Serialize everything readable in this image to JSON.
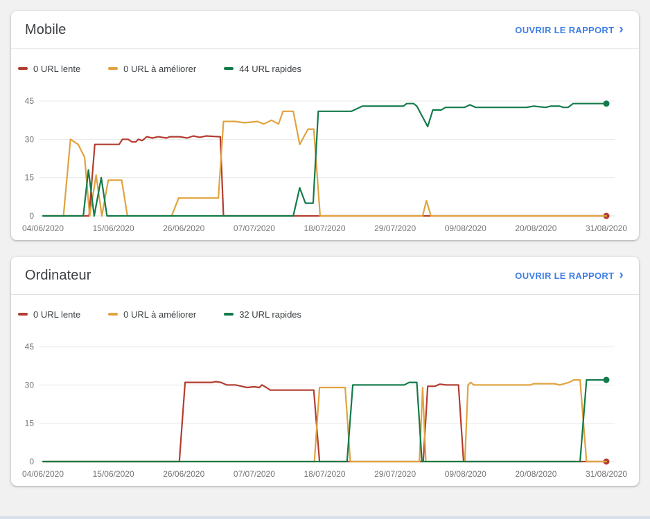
{
  "page": {
    "background": "#f1f1f1"
  },
  "colors": {
    "slow": "#b23d30",
    "improve": "#e0a33e",
    "fast": "#137a4a",
    "link": "#3e7de7",
    "grid": "#e9e9e9",
    "grid_zero": "#dcdcdc",
    "axis_text": "#757575"
  },
  "cards": [
    {
      "title": "Mobile",
      "report_link_label": "OUVRIR LE RAPPORT",
      "chevron": "›",
      "legend": [
        {
          "label": "0 URL lente",
          "color": "#b23d30"
        },
        {
          "label": "0 URL à améliorer",
          "color": "#e0a33e"
        },
        {
          "label": "44 URL rapides",
          "color": "#137a4a"
        }
      ]
    },
    {
      "title": "Ordinateur",
      "report_link_label": "OUVRIR LE RAPPORT",
      "chevron": "›",
      "legend": [
        {
          "label": "0 URL lente",
          "color": "#b23d30"
        },
        {
          "label": "0 URL à améliorer",
          "color": "#e0a33e"
        },
        {
          "label": "32 URL rapides",
          "color": "#137a4a"
        }
      ]
    }
  ],
  "chart_data": [
    {
      "type": "line",
      "title": "Mobile",
      "xlabel": "",
      "ylabel": "",
      "ylim": [
        0,
        45
      ],
      "y_ticks": [
        0,
        15,
        30,
        45
      ],
      "x_range_days": [
        0,
        88
      ],
      "x_tick_days": [
        0,
        11,
        22,
        33,
        44,
        55,
        66,
        77,
        88
      ],
      "x_tick_labels": [
        "04/06/2020",
        "15/06/2020",
        "26/06/2020",
        "07/07/2020",
        "18/07/2020",
        "29/07/2020",
        "09/08/2020",
        "20/08/2020",
        "31/08/2020"
      ],
      "grid": true,
      "legend_position": "top",
      "series": [
        {
          "name": "0 URL lente",
          "color": "#b23d30",
          "end_dot": true,
          "points": [
            [
              0,
              0
            ],
            [
              7.2,
              0
            ],
            [
              8.1,
              28
            ],
            [
              11.9,
              28
            ],
            [
              12.4,
              30
            ],
            [
              13.3,
              30
            ],
            [
              13.9,
              29
            ],
            [
              14.5,
              29
            ],
            [
              14.9,
              30
            ],
            [
              15.5,
              29.5
            ],
            [
              16.2,
              31
            ],
            [
              17.1,
              30.5
            ],
            [
              18,
              31
            ],
            [
              19.3,
              30.5
            ],
            [
              19.8,
              31
            ],
            [
              21.4,
              31
            ],
            [
              22.5,
              30.5
            ],
            [
              23.5,
              31.3
            ],
            [
              24.5,
              30.8
            ],
            [
              25.5,
              31.3
            ],
            [
              27.7,
              31
            ],
            [
              28.2,
              0
            ],
            [
              88,
              0
            ]
          ]
        },
        {
          "name": "0 URL à améliorer",
          "color": "#e0a33e",
          "end_dot": false,
          "points": [
            [
              0,
              0
            ],
            [
              3.2,
              0
            ],
            [
              4.3,
              30
            ],
            [
              5.5,
              28
            ],
            [
              6.5,
              23
            ],
            [
              7.3,
              0
            ],
            [
              8.3,
              16
            ],
            [
              9.2,
              0
            ],
            [
              10.2,
              14
            ],
            [
              12.3,
              14
            ],
            [
              13.2,
              0
            ],
            [
              20.1,
              0
            ],
            [
              21.2,
              7
            ],
            [
              27.4,
              7
            ],
            [
              28.2,
              37
            ],
            [
              30,
              37
            ],
            [
              31.5,
              36.5
            ],
            [
              33.5,
              37
            ],
            [
              34.5,
              36
            ],
            [
              35.7,
              37.5
            ],
            [
              36.8,
              36
            ],
            [
              37.5,
              41
            ],
            [
              39.1,
              41
            ],
            [
              40.1,
              28
            ],
            [
              41.4,
              34
            ],
            [
              42.3,
              34
            ],
            [
              43.3,
              0
            ],
            [
              59.3,
              0
            ],
            [
              59.9,
              6
            ],
            [
              60.6,
              0
            ],
            [
              88,
              0
            ]
          ]
        },
        {
          "name": "44 URL rapides",
          "color": "#137a4a",
          "end_dot": true,
          "points": [
            [
              0,
              0
            ],
            [
              6.3,
              0
            ],
            [
              7.1,
              18
            ],
            [
              8,
              0
            ],
            [
              9.1,
              15
            ],
            [
              10,
              0
            ],
            [
              39.1,
              0
            ],
            [
              40.1,
              11
            ],
            [
              41,
              5
            ],
            [
              42.2,
              5
            ],
            [
              43,
              41
            ],
            [
              48.2,
              41
            ],
            [
              49.9,
              43
            ],
            [
              56.3,
              43
            ],
            [
              56.8,
              44
            ],
            [
              57.9,
              44
            ],
            [
              58.4,
              43
            ],
            [
              60.1,
              35
            ],
            [
              60.9,
              41.5
            ],
            [
              62.2,
              41.5
            ],
            [
              62.9,
              42.5
            ],
            [
              65.8,
              42.5
            ],
            [
              66.7,
              43.5
            ],
            [
              67.6,
              42.5
            ],
            [
              75.5,
              42.5
            ],
            [
              76.6,
              43
            ],
            [
              78.5,
              42.5
            ],
            [
              79.3,
              43
            ],
            [
              80.7,
              43
            ],
            [
              81.3,
              42.5
            ],
            [
              82,
              42.5
            ],
            [
              82.8,
              44
            ],
            [
              88,
              44
            ]
          ]
        }
      ]
    },
    {
      "type": "line",
      "title": "Ordinateur",
      "xlabel": "",
      "ylabel": "",
      "ylim": [
        0,
        45
      ],
      "y_ticks": [
        0,
        15,
        30,
        45
      ],
      "x_range_days": [
        0,
        88
      ],
      "x_tick_days": [
        0,
        11,
        22,
        33,
        44,
        55,
        66,
        77,
        88
      ],
      "x_tick_labels": [
        "04/06/2020",
        "15/06/2020",
        "26/06/2020",
        "07/07/2020",
        "18/07/2020",
        "29/07/2020",
        "09/08/2020",
        "20/08/2020",
        "31/08/2020"
      ],
      "grid": true,
      "legend_position": "top",
      "series": [
        {
          "name": "0 URL lente",
          "color": "#b23d30",
          "end_dot": true,
          "points": [
            [
              0,
              0
            ],
            [
              21.3,
              0
            ],
            [
              22.2,
              31
            ],
            [
              26.4,
              31
            ],
            [
              27,
              31.3
            ],
            [
              27.8,
              31
            ],
            [
              28.7,
              30
            ],
            [
              30.1,
              30
            ],
            [
              31,
              29.5
            ],
            [
              31.9,
              29
            ],
            [
              33,
              29.3
            ],
            [
              33.8,
              29
            ],
            [
              34.2,
              30
            ],
            [
              34.9,
              29
            ],
            [
              35.5,
              28
            ],
            [
              42.3,
              28
            ],
            [
              43.2,
              0
            ],
            [
              59.4,
              0
            ],
            [
              60.1,
              29.5
            ],
            [
              61.2,
              29.5
            ],
            [
              62,
              30.3
            ],
            [
              63,
              30
            ],
            [
              64.9,
              30
            ],
            [
              65.7,
              0
            ],
            [
              88,
              0
            ]
          ]
        },
        {
          "name": "0 URL à améliorer",
          "color": "#e0a33e",
          "end_dot": false,
          "points": [
            [
              0,
              0
            ],
            [
              42.4,
              0
            ],
            [
              43.2,
              29
            ],
            [
              47.2,
              29
            ],
            [
              48,
              0
            ],
            [
              58.8,
              0
            ],
            [
              59.3,
              29
            ],
            [
              59.8,
              0
            ],
            [
              65.9,
              0
            ],
            [
              66.4,
              30
            ],
            [
              66.8,
              31
            ],
            [
              67.3,
              30
            ],
            [
              76.2,
              30
            ],
            [
              76.6,
              30.5
            ],
            [
              79.9,
              30.5
            ],
            [
              80.7,
              30
            ],
            [
              82.2,
              31
            ],
            [
              82.9,
              32
            ],
            [
              83.9,
              32
            ],
            [
              84.9,
              0
            ],
            [
              88,
              0
            ]
          ]
        },
        {
          "name": "32 URL rapides",
          "color": "#137a4a",
          "end_dot": true,
          "points": [
            [
              0,
              0
            ],
            [
              47.5,
              0
            ],
            [
              48.4,
              30
            ],
            [
              56.4,
              30
            ],
            [
              57.2,
              31
            ],
            [
              58.4,
              31
            ],
            [
              59.2,
              0
            ],
            [
              83.9,
              0
            ],
            [
              84.9,
              32
            ],
            [
              88,
              32
            ]
          ]
        }
      ]
    }
  ]
}
